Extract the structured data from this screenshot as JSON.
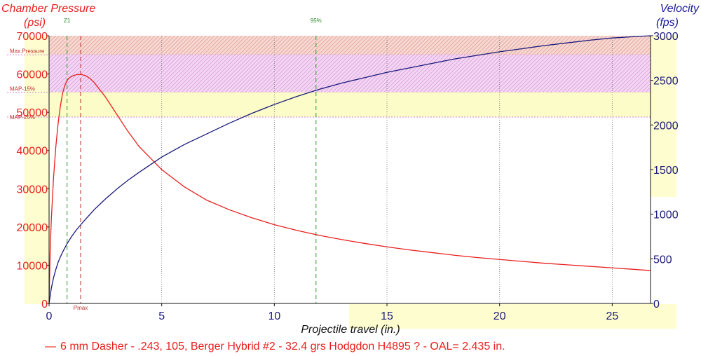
{
  "chart_data": {
    "type": "line",
    "left_axis": {
      "title_line1": "Chamber Pressure",
      "title_line2": "(psi)",
      "ticks": [
        0,
        10000,
        20000,
        30000,
        40000,
        50000,
        60000,
        70000
      ],
      "ylim": [
        0,
        70000
      ],
      "color": "#e8201e"
    },
    "right_axis": {
      "title_line1": "Velocity",
      "title_line2": "(fps)",
      "ticks": [
        0,
        500,
        1000,
        1500,
        2000,
        2500,
        3000
      ],
      "ylim": [
        0,
        3000
      ],
      "color": "#1a1a7a"
    },
    "x_axis": {
      "title": "Projectile travel (in.)",
      "ticks": [
        0,
        5,
        10,
        15,
        20,
        25
      ],
      "xlim": [
        0,
        26.7
      ]
    },
    "bands": [
      {
        "label": "Max.Pressure",
        "from": 65000,
        "to": 70000,
        "color": "#e8a0a0"
      },
      {
        "label": "MAP-15%",
        "from": 55250,
        "to": 65000,
        "color": "#e6a0e6"
      },
      {
        "label": "MAP-25%",
        "from": 48750,
        "to": 55250,
        "color": "#fcfcc0"
      }
    ],
    "markers": [
      {
        "label": "Z1",
        "x": 0.8,
        "color": "#2a9a2a",
        "position": "top"
      },
      {
        "label": "95%",
        "x": 11.85,
        "color": "#2a9a2a",
        "position": "top"
      },
      {
        "label": "Pmax",
        "x": 1.4,
        "color": "#c0302b",
        "position": "bottom"
      }
    ],
    "series": [
      {
        "name": "6 mm Dasher - .243, 105, Berger Hybrid #2 - 32.4 grs Hodgdon H4895 ? - OAL= 2.435 in.",
        "axis": "left",
        "color": "#e8201e",
        "points": [
          [
            0,
            0
          ],
          [
            0.05,
            14000
          ],
          [
            0.1,
            22000
          ],
          [
            0.2,
            33000
          ],
          [
            0.3,
            41000
          ],
          [
            0.4,
            47000
          ],
          [
            0.5,
            51500
          ],
          [
            0.6,
            55000
          ],
          [
            0.7,
            57000
          ],
          [
            0.8,
            58300
          ],
          [
            0.9,
            59000
          ],
          [
            1.0,
            59400
          ],
          [
            1.1,
            59600
          ],
          [
            1.2,
            59800
          ],
          [
            1.4,
            59900
          ],
          [
            1.6,
            59600
          ],
          [
            1.8,
            58900
          ],
          [
            2.0,
            57800
          ],
          [
            2.5,
            54000
          ],
          [
            3.0,
            49500
          ],
          [
            3.5,
            45000
          ],
          [
            4.0,
            41000
          ],
          [
            5.0,
            35000
          ],
          [
            6.0,
            30500
          ],
          [
            7.0,
            27000
          ],
          [
            8.0,
            24500
          ],
          [
            9.0,
            22400
          ],
          [
            10.0,
            20600
          ],
          [
            11.0,
            19100
          ],
          [
            12.0,
            17800
          ],
          [
            13.0,
            16700
          ],
          [
            14.0,
            15700
          ],
          [
            15.0,
            14800
          ],
          [
            16.0,
            14000
          ],
          [
            17.0,
            13300
          ],
          [
            18.0,
            12600
          ],
          [
            19.0,
            12000
          ],
          [
            20.0,
            11500
          ],
          [
            21.0,
            11000
          ],
          [
            22.0,
            10500
          ],
          [
            23.0,
            10100
          ],
          [
            24.0,
            9700
          ],
          [
            25.0,
            9300
          ],
          [
            26.0,
            8900
          ],
          [
            26.7,
            8600
          ]
        ]
      },
      {
        "name": "Velocity",
        "axis": "right",
        "color": "#1a1a7a",
        "points": [
          [
            0,
            0
          ],
          [
            0.1,
            170
          ],
          [
            0.2,
            290
          ],
          [
            0.3,
            380
          ],
          [
            0.4,
            460
          ],
          [
            0.5,
            520
          ],
          [
            0.6,
            575
          ],
          [
            0.8,
            670
          ],
          [
            1.0,
            750
          ],
          [
            1.2,
            820
          ],
          [
            1.5,
            910
          ],
          [
            2.0,
            1050
          ],
          [
            2.5,
            1170
          ],
          [
            3.0,
            1280
          ],
          [
            3.5,
            1380
          ],
          [
            4.0,
            1470
          ],
          [
            5.0,
            1640
          ],
          [
            6.0,
            1780
          ],
          [
            7.0,
            1900
          ],
          [
            8.0,
            2020
          ],
          [
            9.0,
            2130
          ],
          [
            10.0,
            2230
          ],
          [
            11.0,
            2320
          ],
          [
            12.0,
            2400
          ],
          [
            13.0,
            2470
          ],
          [
            14.0,
            2530
          ],
          [
            15.0,
            2590
          ],
          [
            16.0,
            2640
          ],
          [
            17.0,
            2690
          ],
          [
            18.0,
            2740
          ],
          [
            19.0,
            2780
          ],
          [
            20.0,
            2820
          ],
          [
            21.0,
            2855
          ],
          [
            22.0,
            2890
          ],
          [
            23.0,
            2920
          ],
          [
            24.0,
            2950
          ],
          [
            25.0,
            2975
          ],
          [
            26.0,
            2990
          ],
          [
            26.7,
            3000
          ]
        ]
      }
    ],
    "legend": {
      "marker": "—",
      "text": "6 mm Dasher - .243, 105, Berger Hybrid #2 - 32.4 grs Hodgdon H4895 ? - OAL= 2.435 in."
    }
  }
}
